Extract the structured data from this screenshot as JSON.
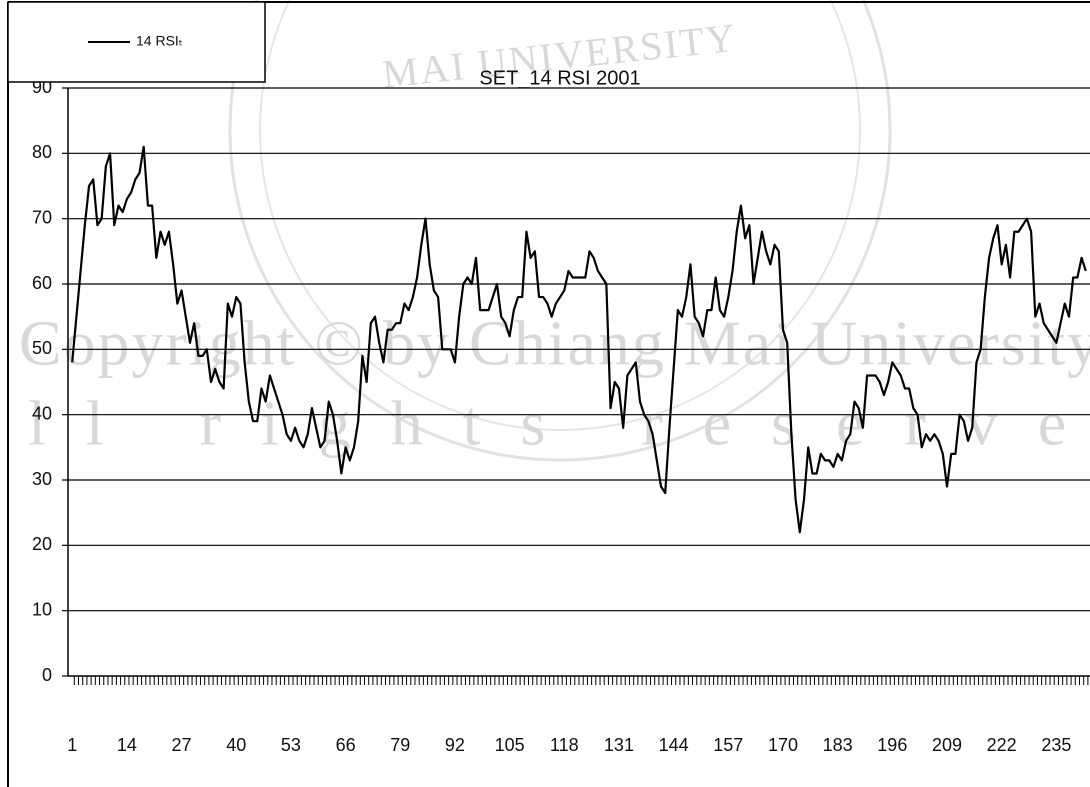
{
  "chart_data": {
    "type": "line",
    "title": "SET_14 RSI 2001",
    "watermark": [
      "MAI UNIVERSITY",
      "Copyright © by Chiang Mai University",
      "All rights reserved"
    ],
    "x": [
      1,
      2,
      3,
      4,
      5,
      6,
      7,
      8,
      9,
      10,
      11,
      12,
      13,
      14,
      15,
      16,
      17,
      18,
      19,
      20,
      21,
      22,
      23,
      24,
      25,
      26,
      27,
      28,
      29,
      30,
      31,
      32,
      33,
      34,
      35,
      36,
      37,
      38,
      39,
      40,
      41,
      42,
      43,
      44,
      45,
      46,
      47,
      48,
      49,
      50,
      51,
      52,
      53,
      54,
      55,
      56,
      57,
      58,
      59,
      60,
      61,
      62,
      63,
      64,
      65,
      66,
      67,
      68,
      69,
      70,
      71,
      72,
      73,
      74,
      75,
      76,
      77,
      78,
      79,
      80,
      81,
      82,
      83,
      84,
      85,
      86,
      87,
      88,
      89,
      90,
      91,
      92,
      93,
      94,
      95,
      96,
      97,
      98,
      99,
      100,
      101,
      102,
      103,
      104,
      105,
      106,
      107,
      108,
      109,
      110,
      111,
      112,
      113,
      114,
      115,
      116,
      117,
      118,
      119,
      120,
      121,
      122,
      123,
      124,
      125,
      126,
      127,
      128,
      129,
      130,
      131,
      132,
      133,
      134,
      135,
      136,
      137,
      138,
      139,
      140,
      141,
      142,
      143,
      144,
      145,
      146,
      147,
      148,
      149,
      150,
      151,
      152,
      153,
      154,
      155,
      156,
      157,
      158,
      159,
      160,
      161,
      162,
      163,
      164,
      165,
      166,
      167,
      168,
      169,
      170,
      171,
      172,
      173,
      174,
      175,
      176,
      177,
      178,
      179,
      180,
      181,
      182,
      183,
      184,
      185,
      186,
      187,
      188,
      189,
      190,
      191,
      192,
      193,
      194,
      195,
      196,
      197,
      198,
      199,
      200,
      201,
      202,
      203,
      204,
      205,
      206,
      207,
      208,
      209,
      210,
      211,
      212,
      213,
      214,
      215,
      216,
      217,
      218,
      219,
      220,
      221,
      222,
      223,
      224,
      225,
      226,
      227,
      228,
      229,
      230,
      231,
      232,
      233,
      234,
      235,
      236,
      237,
      238,
      239,
      240,
      241,
      242
    ],
    "series": [
      {
        "name": "14 RSIₜ",
        "color": "#000000",
        "values": [
          48,
          55,
          62,
          69,
          75,
          76,
          69,
          70,
          78,
          80,
          69,
          72,
          71,
          73,
          74,
          76,
          77,
          81,
          72,
          72,
          64,
          68,
          66,
          68,
          63,
          57,
          59,
          55,
          51,
          54,
          49,
          49,
          50,
          45,
          47,
          45,
          44,
          57,
          55,
          58,
          57,
          48,
          42,
          39,
          39,
          44,
          42,
          46,
          44,
          42,
          40,
          37,
          36,
          38,
          36,
          35,
          37,
          41,
          38,
          35,
          36,
          42,
          40,
          36,
          31,
          35,
          33,
          35,
          39,
          49,
          45,
          54,
          55,
          51,
          48,
          53,
          53,
          54,
          54,
          57,
          56,
          58,
          61,
          66,
          70,
          63,
          59,
          58,
          50,
          50,
          50,
          48,
          55,
          60,
          61,
          60,
          64,
          56,
          56,
          56,
          58,
          60,
          55,
          54,
          52,
          56,
          58,
          58,
          68,
          64,
          65,
          58,
          58,
          57,
          55,
          57,
          58,
          59,
          62,
          61,
          61,
          61,
          61,
          65,
          64,
          62,
          61,
          60,
          41,
          45,
          44,
          38,
          46,
          47,
          48,
          42,
          40,
          39,
          37,
          33,
          29,
          28,
          38,
          47,
          56,
          55,
          58,
          63,
          55,
          54,
          52,
          56,
          56,
          61,
          56,
          55,
          58,
          62,
          68,
          72,
          67,
          69,
          60,
          64,
          68,
          65,
          63,
          66,
          65,
          53,
          51,
          37,
          27,
          22,
          27,
          35,
          31,
          31,
          34,
          33,
          33,
          32,
          34,
          33,
          36,
          37,
          42,
          41,
          38,
          46,
          46,
          46,
          45,
          43,
          45,
          48,
          47,
          46,
          44,
          44,
          41,
          40,
          35,
          37,
          36,
          37,
          36,
          34,
          29,
          34,
          34,
          40,
          39,
          36,
          38,
          48,
          50,
          58,
          64,
          67,
          69,
          63,
          66,
          61,
          68,
          68,
          69,
          70,
          68,
          55,
          57,
          54,
          53,
          52,
          51,
          54,
          57,
          55,
          61,
          61,
          64,
          62
        ]
      }
    ],
    "xlim": [
      0,
      243
    ],
    "xticks": [
      1,
      14,
      27,
      40,
      53,
      66,
      79,
      92,
      105,
      118,
      131,
      144,
      157,
      170,
      183,
      196,
      209,
      222,
      235
    ],
    "ylim": [
      0,
      90
    ],
    "yticks": [
      0,
      10,
      20,
      30,
      40,
      50,
      60,
      70,
      80,
      90
    ],
    "grid": true,
    "legend": "top-left"
  }
}
